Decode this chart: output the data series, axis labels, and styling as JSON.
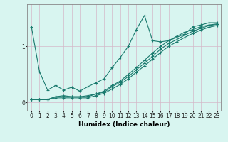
{
  "title": "",
  "xlabel": "Humidex (Indice chaleur)",
  "bg_color": "#d8f5f0",
  "grid_color": "#d4b8c8",
  "line_color": "#1a7a6e",
  "x_values": [
    0,
    1,
    2,
    3,
    4,
    5,
    6,
    7,
    8,
    9,
    10,
    11,
    12,
    13,
    14,
    15,
    16,
    17,
    18,
    19,
    20,
    21,
    22,
    23
  ],
  "line1": [
    1.35,
    0.55,
    0.22,
    0.3,
    0.22,
    0.27,
    0.2,
    0.28,
    0.35,
    0.42,
    0.62,
    0.8,
    1.0,
    1.3,
    1.55,
    1.1,
    1.08,
    1.1,
    1.16,
    1.22,
    1.35,
    1.38,
    1.42,
    1.42
  ],
  "line2": [
    0.05,
    0.05,
    0.05,
    0.1,
    0.12,
    0.1,
    0.1,
    0.12,
    0.15,
    0.2,
    0.3,
    0.38,
    0.5,
    0.62,
    0.75,
    0.88,
    1.0,
    1.1,
    1.18,
    1.25,
    1.3,
    1.35,
    1.38,
    1.4
  ],
  "line3": [
    0.05,
    0.05,
    0.05,
    0.1,
    0.1,
    0.1,
    0.1,
    0.1,
    0.15,
    0.18,
    0.28,
    0.36,
    0.46,
    0.58,
    0.7,
    0.82,
    0.95,
    1.05,
    1.12,
    1.2,
    1.27,
    1.32,
    1.37,
    1.39
  ],
  "line4": [
    0.05,
    0.05,
    0.05,
    0.08,
    0.08,
    0.08,
    0.08,
    0.08,
    0.12,
    0.16,
    0.24,
    0.32,
    0.42,
    0.54,
    0.65,
    0.77,
    0.89,
    1.0,
    1.08,
    1.16,
    1.23,
    1.29,
    1.34,
    1.37
  ],
  "yticks": [
    0,
    1
  ],
  "xlim": [
    -0.5,
    23.5
  ],
  "ylim": [
    -0.15,
    1.75
  ]
}
